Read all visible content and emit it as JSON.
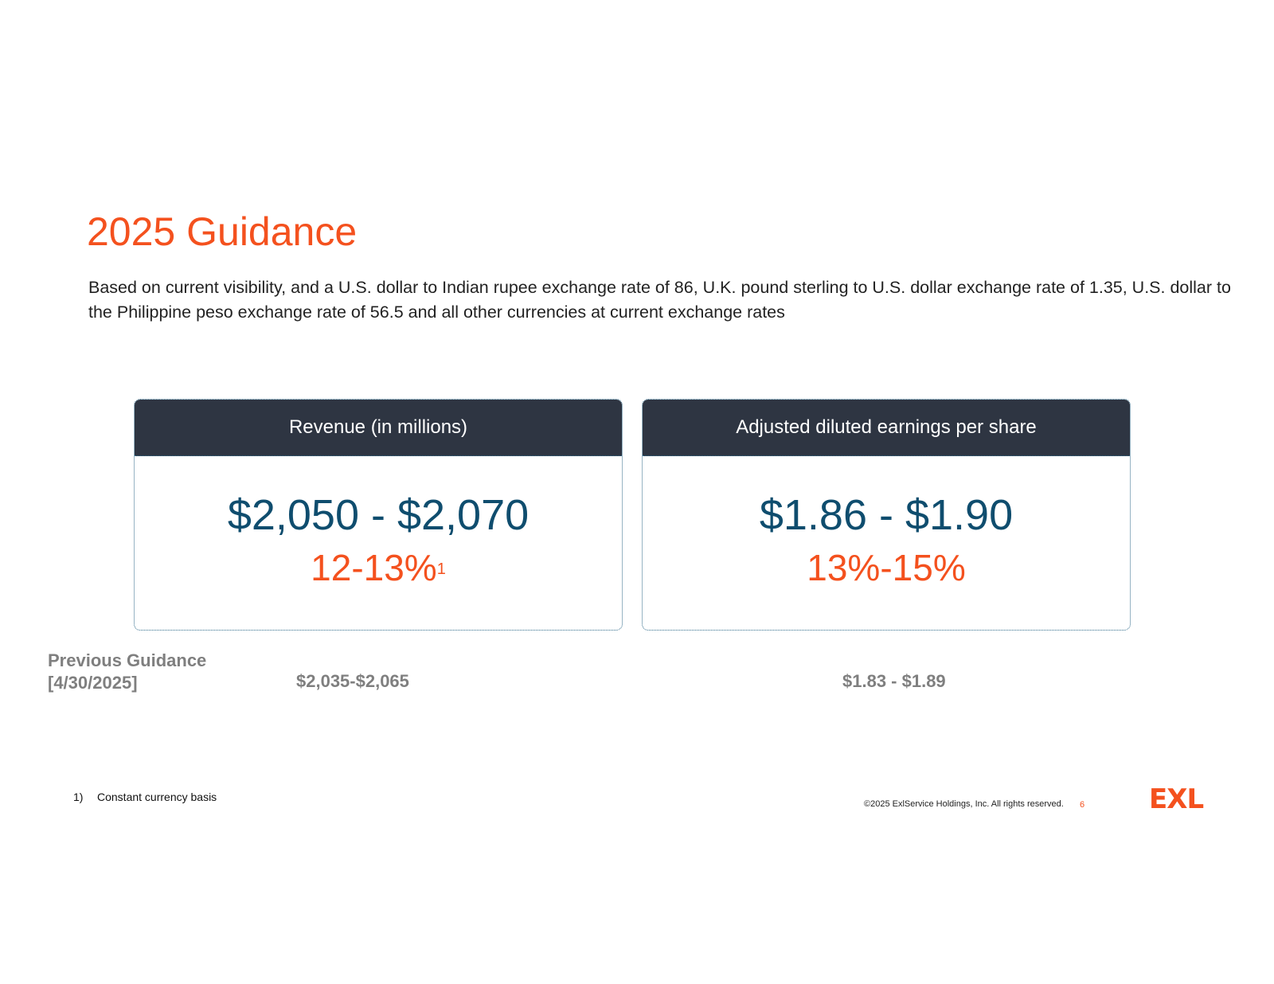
{
  "slide": {
    "title": "2025 Guidance",
    "subtitle": "Based on current visibility, and a U.S. dollar to Indian rupee exchange rate of 86, U.K. pound sterling to U.S. dollar exchange rate of 1.35, U.S. dollar to the Philippine peso exchange rate of 56.5 and all other currencies at current exchange rates",
    "cards": [
      {
        "header": "Revenue (in millions)",
        "value": "$2,050 - $2,070",
        "growth": "12-13%",
        "growth_footnote": "1"
      },
      {
        "header": "Adjusted diluted earnings per share",
        "value": "$1.86 - $1.90",
        "growth": "13%-15%",
        "growth_footnote": ""
      }
    ],
    "previous_guidance": {
      "label_line1": "Previous Guidance",
      "label_line2": "[4/30/2025]",
      "revenue": "$2,035-$2,065",
      "eps": "$1.83 - $1.89"
    },
    "footnote": {
      "number": "1)",
      "text": "Constant currency basis"
    },
    "footer": {
      "copyright": "©2025 ExlService Holdings, Inc. All rights reserved.",
      "page_number": "6",
      "logo_text": "EXL"
    },
    "colors": {
      "accent_orange": "#f4511e",
      "value_blue": "#0f4d6e",
      "header_dark": "#2e3542",
      "muted_gray": "#7f7f7f"
    }
  }
}
